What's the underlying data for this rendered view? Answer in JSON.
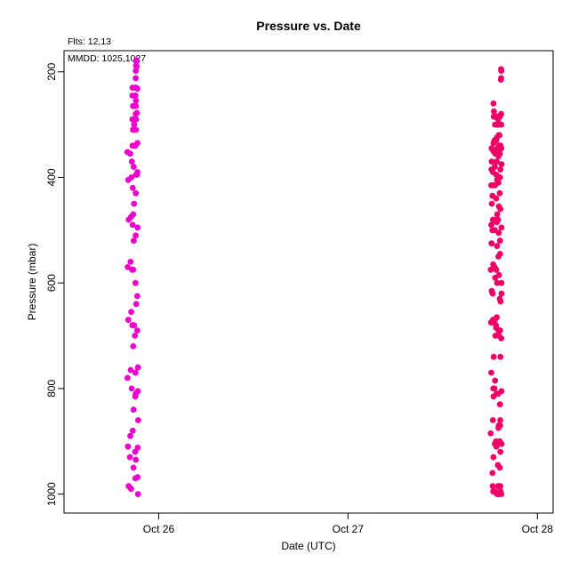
{
  "chart_data": {
    "type": "scatter",
    "title": "Pressure  vs. Date",
    "xlabel": "Date (UTC)",
    "ylabel": "Pressure (mbar)",
    "annotations": [
      "Flts: 12,13",
      "MMDD: 1025,1027"
    ],
    "x_ticks": [
      "Oct 26",
      "Oct 27",
      "Oct 28"
    ],
    "y_ticks": [
      200,
      400,
      600,
      800,
      1000
    ],
    "xlim": [
      "Oct 25 12:00",
      "Oct 28 02:00"
    ],
    "ylim": [
      1036,
      160
    ],
    "y_reversed": true,
    "grid": false,
    "series": [
      {
        "color": "#ee00cc",
        "points": [
          [
            "Oct 25 20:12",
            985
          ],
          [
            "Oct 25 20:06",
            910
          ],
          [
            "Oct 25 20:03",
            780
          ],
          [
            "Oct 25 20:09",
            670
          ],
          [
            "Oct 25 20:04",
            570
          ],
          [
            "Oct 25 20:12",
            480
          ],
          [
            "Oct 25 20:08",
            405
          ],
          [
            "Oct 25 20:02",
            352
          ],
          [
            "Oct 25 20:30",
            990
          ],
          [
            "Oct 25 20:24",
            890
          ],
          [
            "Oct 25 20:21",
            930
          ],
          [
            "Oct 25 20:35",
            800
          ],
          [
            "Oct 25 20:27",
            765
          ],
          [
            "Oct 25 20:40",
            680
          ],
          [
            "Oct 25 20:31",
            655
          ],
          [
            "Oct 25 20:38",
            575
          ],
          [
            "Oct 25 20:26",
            560
          ],
          [
            "Oct 25 20:29",
            475
          ],
          [
            "Oct 25 20:33",
            400
          ],
          [
            "Oct 25 20:36",
            370
          ],
          [
            "Oct 25 20:24",
            355
          ],
          [
            "Oct 25 20:48",
            950
          ],
          [
            "Oct 25 20:43",
            880
          ],
          [
            "Oct 25 20:49",
            840
          ],
          [
            "Oct 25 20:46",
            720
          ],
          [
            "Oct 25 20:52",
            680
          ],
          [
            "Oct 25 20:46",
            575
          ],
          [
            "Oct 25 20:42",
            490
          ],
          [
            "Oct 25 20:50",
            380
          ],
          [
            "Oct 25 20:41",
            340
          ],
          [
            "Oct 25 20:53",
            300
          ],
          [
            "Oct 25 20:44",
            310
          ],
          [
            "Oct 25 20:41",
            290
          ],
          [
            "Oct 25 20:45",
            265
          ],
          [
            "Oct 25 20:40",
            245
          ],
          [
            "Oct 25 20:41",
            230
          ],
          [
            "Oct 25 20:46",
            470
          ],
          [
            "Oct 25 20:52",
            450
          ],
          [
            "Oct 25 20:43",
            420
          ],
          [
            "Oct 25 20:50",
            520
          ],
          [
            "Oct 25 21:03",
            970
          ],
          [
            "Oct 25 21:06",
            935
          ],
          [
            "Oct 25 21:01",
            920
          ],
          [
            "Oct 25 21:06",
            810
          ],
          [
            "Oct 25 21:02",
            815
          ],
          [
            "Oct 25 21:03",
            770
          ],
          [
            "Oct 25 20:59",
            700
          ],
          [
            "Oct 25 21:04",
            600
          ],
          [
            "Oct 25 21:09",
            640
          ],
          [
            "Oct 25 21:05",
            510
          ],
          [
            "Oct 25 21:06",
            430
          ],
          [
            "Oct 25 21:08",
            395
          ],
          [
            "Oct 25 21:03",
            340
          ],
          [
            "Oct 25 21:07",
            310
          ],
          [
            "Oct 25 21:05",
            280
          ],
          [
            "Oct 25 21:07",
            265
          ],
          [
            "Oct 25 21:04",
            245
          ],
          [
            "Oct 25 21:01",
            230
          ],
          [
            "Oct 25 21:05",
            212
          ],
          [
            "Oct 25 21:06",
            198
          ],
          [
            "Oct 25 21:08",
            188
          ],
          [
            "Oct 25 21:09",
            180
          ],
          [
            "Oct 25 21:10",
            178
          ],
          [
            "Oct 25 21:13",
            180
          ],
          [
            "Oct 25 21:12",
            190
          ],
          [
            "Oct 25 21:09",
            230
          ],
          [
            "Oct 25 21:07",
            255
          ],
          [
            "Oct 25 21:08",
            290
          ],
          [
            "Oct 25 21:23",
            1000
          ],
          [
            "Oct 25 21:20",
            968
          ],
          [
            "Oct 25 21:21",
            912
          ],
          [
            "Oct 25 21:24",
            860
          ],
          [
            "Oct 25 21:22",
            805
          ],
          [
            "Oct 25 21:22",
            760
          ],
          [
            "Oct 25 21:17",
            690
          ],
          [
            "Oct 25 21:17",
            625
          ],
          [
            "Oct 25 21:20",
            495
          ],
          [
            "Oct 25 21:16",
            395
          ],
          [
            "Oct 25 21:18",
            390
          ],
          [
            "Oct 25 21:19",
            335
          ],
          [
            "Oct 25 21:14",
            278
          ],
          [
            "Oct 25 21:18",
            232
          ]
        ]
      },
      {
        "color": "#ee0066",
        "points": [
          [
            "Oct 27 18:05",
            885
          ],
          [
            "Oct 27 18:10",
            770
          ],
          [
            "Oct 27 18:08",
            675
          ],
          [
            "Oct 27 18:13",
            615
          ],
          [
            "Oct 27 18:06",
            575
          ],
          [
            "Oct 27 18:12",
            525
          ],
          [
            "Oct 27 18:10",
            490
          ],
          [
            "Oct 27 18:14",
            450
          ],
          [
            "Oct 27 18:09",
            415
          ],
          [
            "Oct 27 18:11",
            385
          ],
          [
            "Oct 27 18:13",
            370
          ],
          [
            "Oct 27 18:12",
            345
          ],
          [
            "Oct 27 18:21",
            985
          ],
          [
            "Oct 27 18:25",
            995
          ],
          [
            "Oct 27 18:19",
            960
          ],
          [
            "Oct 27 18:26",
            930
          ],
          [
            "Oct 27 18:22",
            860
          ],
          [
            "Oct 27 18:27",
            815
          ],
          [
            "Oct 27 18:25",
            800
          ],
          [
            "Oct 27 18:28",
            740
          ],
          [
            "Oct 27 18:23",
            670
          ],
          [
            "Oct 27 18:20",
            620
          ],
          [
            "Oct 27 18:24",
            565
          ],
          [
            "Oct 27 18:18",
            500
          ],
          [
            "Oct 27 18:22",
            480
          ],
          [
            "Oct 27 18:19",
            435
          ],
          [
            "Oct 27 18:26",
            415
          ],
          [
            "Oct 27 18:22",
            390
          ],
          [
            "Oct 27 18:25",
            350
          ],
          [
            "Oct 27 18:27",
            335
          ],
          [
            "Oct 27 18:29",
            285
          ],
          [
            "Oct 27 18:26",
            260
          ],
          [
            "Oct 27 18:30",
            275
          ],
          [
            "Oct 27 18:39",
            995
          ],
          [
            "Oct 27 18:37",
            905
          ],
          [
            "Oct 27 18:34",
            800
          ],
          [
            "Oct 27 18:38",
            785
          ],
          [
            "Oct 27 18:41",
            700
          ],
          [
            "Oct 27 18:36",
            670
          ],
          [
            "Oct 27 18:40",
            590
          ],
          [
            "Oct 27 18:35",
            570
          ],
          [
            "Oct 27 18:37",
            500
          ],
          [
            "Oct 27 18:41",
            480
          ],
          [
            "Oct 27 18:38",
            415
          ],
          [
            "Oct 27 18:36",
            380
          ],
          [
            "Oct 27 18:40",
            355
          ],
          [
            "Oct 27 18:34",
            330
          ],
          [
            "Oct 27 18:33",
            285
          ],
          [
            "Oct 27 18:38",
            300
          ],
          [
            "Oct 27 18:53",
            1000
          ],
          [
            "Oct 27 18:49",
            910
          ],
          [
            "Oct 27 18:46",
            900
          ],
          [
            "Oct 27 18:50",
            810
          ],
          [
            "Oct 27 18:47",
            685
          ],
          [
            "Oct 27 18:45",
            680
          ],
          [
            "Oct 27 18:51",
            665
          ],
          [
            "Oct 27 18:54",
            600
          ],
          [
            "Oct 27 18:47",
            575
          ],
          [
            "Oct 27 18:53",
            530
          ],
          [
            "Oct 27 18:52",
            485
          ],
          [
            "Oct 27 18:55",
            470
          ],
          [
            "Oct 27 18:47",
            440
          ],
          [
            "Oct 27 18:54",
            405
          ],
          [
            "Oct 27 18:48",
            395
          ],
          [
            "Oct 27 18:51",
            370
          ],
          [
            "Oct 27 18:56",
            345
          ],
          [
            "Oct 27 18:52",
            325
          ],
          [
            "Oct 27 18:47",
            330
          ],
          [
            "Oct 27 18:52",
            300
          ],
          [
            "Oct 27 18:55",
            285
          ],
          [
            "Oct 27 18:46",
            285
          ],
          [
            "Oct 27 19:05",
            1000
          ],
          [
            "Oct 27 19:02",
            985
          ],
          [
            "Oct 27 19:00",
            945
          ],
          [
            "Oct 27 19:04",
            875
          ],
          [
            "Oct 27 19:07",
            870
          ],
          [
            "Oct 27 19:02",
            810
          ],
          [
            "Oct 27 19:08",
            700
          ],
          [
            "Oct 27 19:05",
            690
          ],
          [
            "Oct 27 19:09",
            585
          ],
          [
            "Oct 27 19:04",
            550
          ],
          [
            "Oct 27 19:07",
            505
          ],
          [
            "Oct 27 19:01",
            480
          ],
          [
            "Oct 27 19:08",
            455
          ],
          [
            "Oct 27 19:04",
            410
          ],
          [
            "Oct 27 19:07",
            400
          ],
          [
            "Oct 27 19:05",
            360
          ],
          [
            "Oct 27 19:00",
            345
          ],
          [
            "Oct 27 19:09",
            340
          ],
          [
            "Oct 27 19:06",
            320
          ],
          [
            "Oct 27 19:04",
            300
          ],
          [
            "Oct 27 19:02",
            290
          ],
          [
            "Oct 27 19:08",
            285
          ],
          [
            "Oct 27 19:20",
            995
          ],
          [
            "Oct 27 19:18",
            985
          ],
          [
            "Oct 27 19:15",
            950
          ],
          [
            "Oct 27 19:19",
            920
          ],
          [
            "Oct 27 19:14",
            900
          ],
          [
            "Oct 27 19:17",
            870
          ],
          [
            "Oct 27 19:18",
            860
          ],
          [
            "Oct 27 19:16",
            830
          ],
          [
            "Oct 27 19:19",
            740
          ],
          [
            "Oct 27 19:17",
            690
          ],
          [
            "Oct 27 19:14",
            630
          ],
          [
            "Oct 27 19:20",
            635
          ],
          [
            "Oct 27 19:17",
            545
          ],
          [
            "Oct 27 19:16",
            520
          ],
          [
            "Oct 27 19:19",
            460
          ],
          [
            "Oct 27 19:14",
            430
          ],
          [
            "Oct 27 19:16",
            400
          ],
          [
            "Oct 27 19:19",
            385
          ],
          [
            "Oct 27 19:15",
            355
          ],
          [
            "Oct 27 19:12",
            320
          ],
          [
            "Oct 27 19:20",
            340
          ],
          [
            "Oct 27 19:18",
            300
          ],
          [
            "Oct 27 19:14",
            285
          ],
          [
            "Oct 27 19:23",
            215
          ],
          [
            "Oct 27 19:24",
            195
          ],
          [
            "Oct 27 19:26",
            198
          ],
          [
            "Oct 27 19:25",
            212
          ],
          [
            "Oct 27 19:26",
            1000
          ],
          [
            "Oct 27 19:28",
            905
          ],
          [
            "Oct 27 19:27",
            805
          ],
          [
            "Oct 27 19:26",
            705
          ],
          [
            "Oct 27 19:28",
            620
          ],
          [
            "Oct 27 19:27",
            495
          ],
          [
            "Oct 27 19:28",
            375
          ],
          [
            "Oct 27 19:26",
            345
          ],
          [
            "Oct 27 19:26",
            300
          ],
          [
            "Oct 27 19:25",
            280
          ],
          [
            "Oct 27 19:27",
            600
          ]
        ]
      }
    ]
  }
}
